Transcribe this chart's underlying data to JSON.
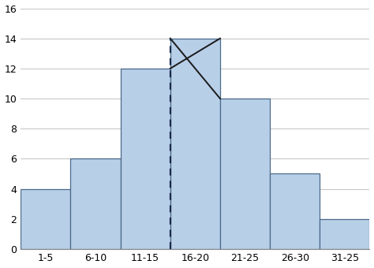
{
  "categories": [
    "1-5",
    "6-10",
    "11-15",
    "16-20",
    "21-25",
    "26-30",
    "31-25"
  ],
  "values": [
    4,
    6,
    12,
    14,
    10,
    5,
    2
  ],
  "bar_color": "#b8cfe8",
  "bar_edgecolor": "#4a6a8a",
  "background_color": "#ffffff",
  "ylim": [
    0,
    16
  ],
  "yticks": [
    0,
    2,
    4,
    6,
    8,
    10,
    12,
    14,
    16
  ],
  "grid_color": "#c8c8c8",
  "dashed_line_color": "#1a2a4a",
  "cross_line_color": "#1a1a1a",
  "modal_bar_index": 3,
  "bar_width": 1.0,
  "figsize": [
    4.74,
    3.4
  ],
  "dpi": 100
}
